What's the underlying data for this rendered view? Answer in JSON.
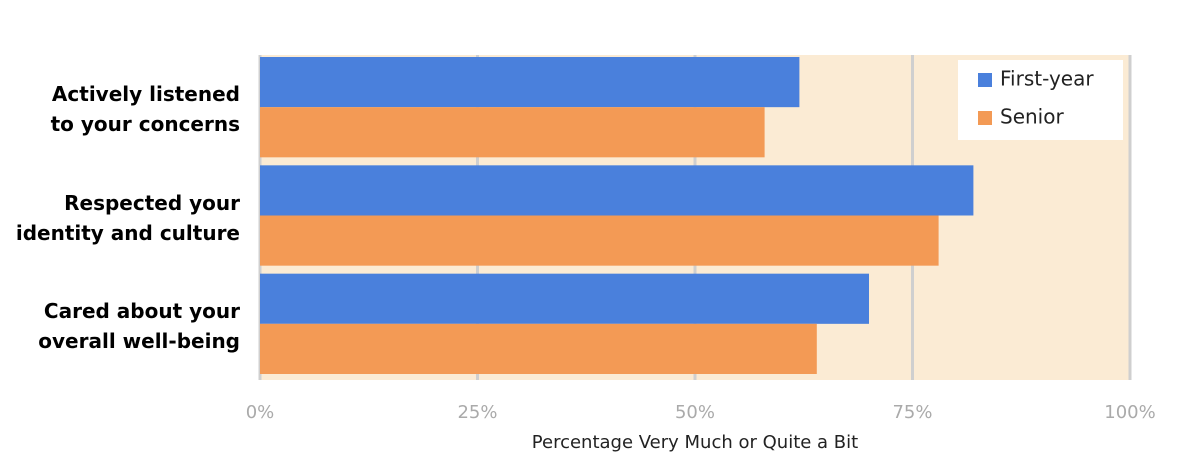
{
  "chart_data": {
    "type": "bar",
    "orientation": "horizontal",
    "categories": [
      "Actively listened\nto your concerns",
      "Respected your\nidentity and culture",
      "Cared about your\noverall well-being"
    ],
    "series": [
      {
        "name": "First-year",
        "color": "#4a80dc",
        "values": [
          62,
          82,
          70
        ]
      },
      {
        "name": "Senior",
        "color": "#f39a55",
        "values": [
          58,
          78,
          64
        ]
      }
    ],
    "xlabel": "Percentage Very Much or Quite a Bit",
    "xlim": [
      0,
      100
    ],
    "xticks": [
      {
        "value": 0,
        "label": "0%"
      },
      {
        "value": 25,
        "label": "25%"
      },
      {
        "value": 50,
        "label": "50%"
      },
      {
        "value": 75,
        "label": "75%"
      },
      {
        "value": 100,
        "label": "100%"
      }
    ],
    "grid": true,
    "legend": "upper right",
    "background": "#fbebd4"
  }
}
